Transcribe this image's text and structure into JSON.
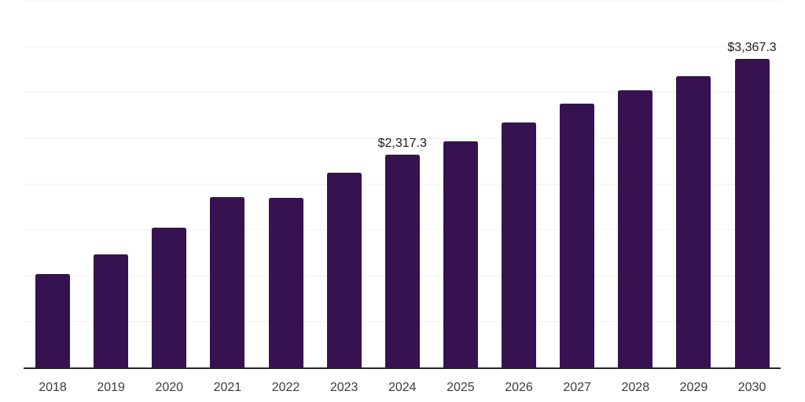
{
  "chart_data": {
    "type": "bar",
    "title": "",
    "xlabel": "",
    "ylabel": "",
    "categories": [
      "2018",
      "2019",
      "2020",
      "2021",
      "2022",
      "2023",
      "2024",
      "2025",
      "2026",
      "2027",
      "2028",
      "2029",
      "2030"
    ],
    "values": [
      1020,
      1231,
      1527,
      1857,
      1849,
      2127,
      2317.3,
      2470,
      2669,
      2874,
      3026,
      3182,
      3367.3
    ],
    "point_labels": [
      "",
      "",
      "",
      "",
      "",
      "",
      "$2,317.3",
      "",
      "",
      "",
      "",
      "",
      "$3,367.3"
    ],
    "ylim": [
      0,
      4000
    ],
    "gridline_step": 500,
    "grid": "horizontal-only",
    "legend": "none",
    "y_tick_labels_visible": false,
    "colors": {
      "bar": "#371250",
      "gridline": "#f1f1f1",
      "axis_line": "#262626",
      "point_label_text": "#1c1c1c",
      "tick_label_text": "#3b3b3b",
      "background": "#ffffff"
    }
  }
}
